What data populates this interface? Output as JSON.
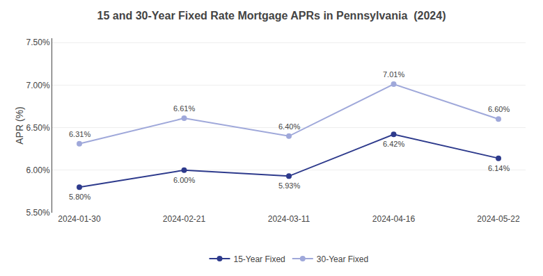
{
  "chart_data": {
    "type": "line",
    "title": "15 and 30-Year Fixed Rate Mortgage APRs in Pennsylvania  (2024)",
    "ylabel": "APR (%)",
    "categories": [
      "2024-01-30",
      "2024-02-21",
      "2024-03-11",
      "2024-04-16",
      "2024-05-22"
    ],
    "series": [
      {
        "name": "15-Year Fixed",
        "color": "#2d3a8c",
        "marker": "circle",
        "values": [
          5.8,
          6.0,
          5.93,
          6.42,
          6.14
        ],
        "value_labels": [
          "5.80%",
          "6.00%",
          "5.93%",
          "6.42%",
          "6.14%"
        ]
      },
      {
        "name": "30-Year Fixed",
        "color": "#9fa8da",
        "marker": "circle",
        "values": [
          6.31,
          6.61,
          6.4,
          7.01,
          6.6
        ],
        "value_labels": [
          "6.31%",
          "6.61%",
          "6.40%",
          "7.01%",
          "6.60%"
        ]
      }
    ],
    "ylim": [
      5.5,
      7.55
    ],
    "yticks": [
      {
        "value": 5.5,
        "label": "5.50%"
      },
      {
        "value": 6.0,
        "label": "6.00%"
      },
      {
        "value": 6.5,
        "label": "6.50%"
      },
      {
        "value": 7.0,
        "label": "7.00%"
      },
      {
        "value": 7.5,
        "label": "7.50%"
      }
    ],
    "grid": true,
    "legend": "bottom",
    "data_labels": true
  }
}
